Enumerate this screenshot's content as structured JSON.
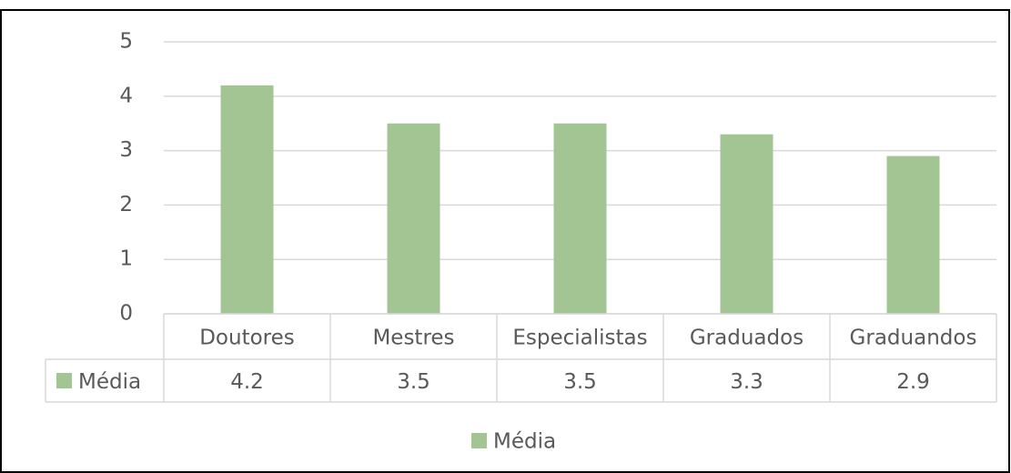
{
  "chart_data": {
    "type": "bar",
    "categories": [
      "Doutores",
      "Mestres",
      "Especialistas",
      "Graduados",
      "Graduandos"
    ],
    "series": [
      {
        "name": "Média",
        "color": "#a2c593",
        "values": [
          4.2,
          3.5,
          3.5,
          3.3,
          2.9
        ]
      }
    ],
    "ylim": [
      0,
      5
    ],
    "yticks": [
      0,
      1,
      2,
      3,
      4,
      5
    ],
    "grid": true,
    "legend": "bottom",
    "data_table": true
  }
}
